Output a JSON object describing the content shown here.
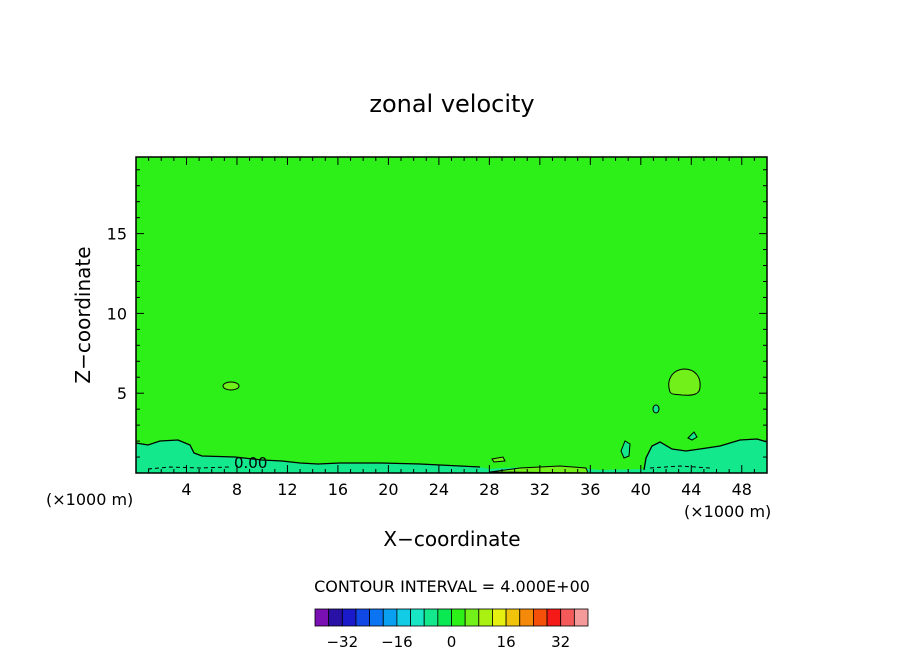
{
  "chart_data": {
    "type": "heatmap",
    "title": "zonal velocity",
    "xlabel": "X−coordinate",
    "ylabel": "Z−coordinate",
    "x_units_left": "(×1000 m)",
    "x_units_right": "(×1000 m)",
    "xlim": [
      0,
      50
    ],
    "ylim": [
      0,
      19.8
    ],
    "x_ticks": [
      4,
      8,
      12,
      16,
      20,
      24,
      28,
      32,
      36,
      40,
      44,
      48
    ],
    "x_tick_labels": [
      "4",
      "8",
      "12",
      "16",
      "20",
      "24",
      "28",
      "32",
      "36",
      "40",
      "44",
      "48"
    ],
    "y_ticks": [
      5,
      10,
      15
    ],
    "y_tick_labels": [
      "5",
      "10",
      "15"
    ],
    "background_value": 0,
    "contour_label": "0.00",
    "contour_interval_text": "CONTOUR INTERVAL = 4.000E+00",
    "colorbar": {
      "levels": [
        -36,
        -32,
        -28,
        -24,
        -20,
        -16,
        -12,
        -8,
        -4,
        0,
        4,
        8,
        12,
        16,
        20,
        24,
        28,
        32,
        36
      ],
      "colors": [
        "#7a0fb4",
        "#2a11a6",
        "#1a1aca",
        "#1048e6",
        "#0a74f2",
        "#0aa0f2",
        "#12cce6",
        "#18e6c4",
        "#14e88c",
        "#0ae852",
        "#2cf018",
        "#72f01a",
        "#aaf010",
        "#e6f010",
        "#f0c40a",
        "#f58a0a",
        "#f5500a",
        "#f51a18",
        "#f55a5a",
        "#f59a9a"
      ],
      "tick_values": [
        -32,
        -16,
        0,
        16,
        32
      ],
      "tick_labels": [
        "−32",
        "−16",
        "0",
        "16",
        "32"
      ]
    },
    "colors": {
      "field": "#2cf018",
      "negative_region": "#14e88c",
      "positive_region": "#72f01a"
    }
  }
}
